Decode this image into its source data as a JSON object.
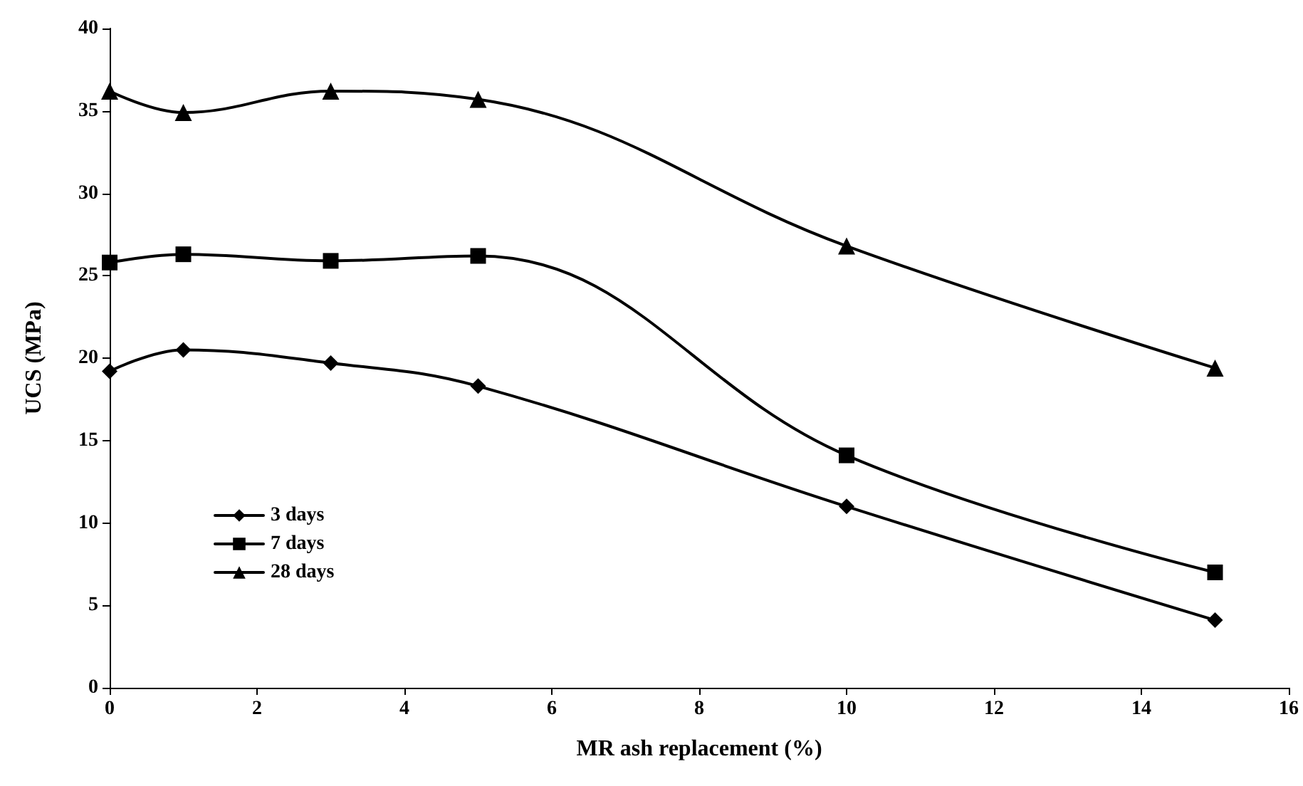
{
  "chart_data": {
    "type": "line",
    "xlabel": "MR ash replacement (%)",
    "ylabel": "UCS (MPa)",
    "x": [
      0,
      1,
      3,
      5,
      10,
      15
    ],
    "series": [
      {
        "name": "3 days",
        "color": "#000000",
        "marker": "diamond",
        "values": [
          19.2,
          20.5,
          19.7,
          18.3,
          11.0,
          4.1
        ]
      },
      {
        "name": "7 days",
        "color": "#000000",
        "marker": "square",
        "values": [
          25.8,
          26.3,
          25.9,
          26.2,
          14.1,
          7.0
        ]
      },
      {
        "name": "28 days",
        "color": "#000000",
        "marker": "triangle",
        "values": [
          36.2,
          34.9,
          36.2,
          35.7,
          26.8,
          19.4
        ]
      }
    ],
    "xlim": [
      0,
      16
    ],
    "xticks": [
      0,
      2,
      4,
      6,
      8,
      10,
      12,
      14,
      16
    ],
    "ylim": [
      0,
      40
    ],
    "yticks": [
      0,
      5,
      10,
      15,
      20,
      25,
      30,
      35,
      40
    ],
    "grid": false,
    "legend": "bottom left",
    "line_style": "solid"
  }
}
